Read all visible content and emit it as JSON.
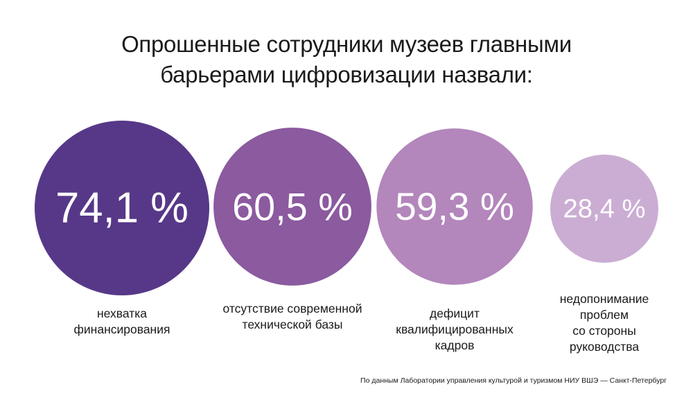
{
  "title": {
    "line1": "Опрошенные сотрудники музеев главными",
    "line2": "барьерами цифровизации назвали:"
  },
  "source": "По данным Лаборатории управления культурой и туризмом НИУ ВШЭ — Санкт-Петербург",
  "chart_data": {
    "type": "bubble",
    "unit": "%",
    "items": [
      {
        "value": 74.1,
        "value_label": "74,1 %",
        "label_lines": [
          "нехватка",
          "финансирования"
        ],
        "color": "#573888"
      },
      {
        "value": 60.5,
        "value_label": "60,5 %",
        "label_lines": [
          "отсутствие современной",
          "технической базы"
        ],
        "color": "#8b5a9f"
      },
      {
        "value": 59.3,
        "value_label": "59,3 %",
        "label_lines": [
          "дефицит",
          "квалифицированных",
          "кадров"
        ],
        "color": "#b386bc"
      },
      {
        "value": 28.4,
        "value_label": "28,4 %",
        "label_lines": [
          "недопонимание",
          "проблем",
          "со стороны",
          "руководства"
        ],
        "color": "#cbadd4"
      }
    ]
  }
}
